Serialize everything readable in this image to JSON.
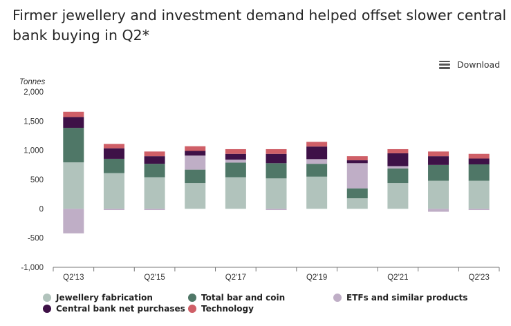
{
  "title": "Firmer jewellery and investment demand helped offset slower central bank buying in Q2*",
  "toolbar": {
    "download_label": "Download",
    "download_icon": "hamburger-menu-icon"
  },
  "chart_data": {
    "type": "bar",
    "stacked": true,
    "ylabel": "Tonnes",
    "ylim": [
      -1000,
      2000
    ],
    "yticks": [
      -1000,
      -500,
      0,
      500,
      1000,
      1500,
      2000
    ],
    "ytick_labels": [
      "-1,000",
      "-500",
      "0",
      "500",
      "1,000",
      "1,500",
      "2,000"
    ],
    "categories": [
      "Q2'13",
      "Q2'14",
      "Q2'15",
      "Q2'16",
      "Q2'17",
      "Q2'18",
      "Q2'19",
      "Q2'20",
      "Q2'21",
      "Q2'22",
      "Q2'23"
    ],
    "xtick_labels": [
      "Q2'13",
      "",
      "Q2'15",
      "",
      "Q2'17",
      "",
      "Q2'19",
      "",
      "Q2'21",
      "",
      "Q2'23"
    ],
    "grid": false,
    "legend_position": "bottom",
    "series": [
      {
        "name": "Jewellery fabrication",
        "color": "#b1c3bc",
        "values": [
          795,
          610,
          540,
          440,
          540,
          520,
          550,
          180,
          440,
          480,
          480
        ]
      },
      {
        "name": "Total bar and coin",
        "color": "#4f7767",
        "values": [
          590,
          245,
          230,
          230,
          250,
          260,
          220,
          170,
          250,
          270,
          280
        ]
      },
      {
        "name": "ETFs and similar products",
        "color": "#bfaec6",
        "values": [
          -420,
          -20,
          -20,
          240,
          50,
          -20,
          80,
          430,
          40,
          -50,
          -20
        ]
      },
      {
        "name": "Central bank net purchases",
        "color": "#3e1147",
        "values": [
          185,
          180,
          130,
          80,
          100,
          160,
          215,
          50,
          220,
          150,
          100
        ]
      },
      {
        "name": "Technology",
        "color": "#cf5f67",
        "values": [
          90,
          75,
          80,
          80,
          80,
          80,
          80,
          70,
          70,
          80,
          80
        ]
      }
    ]
  },
  "legend": {
    "items": [
      {
        "label": "Jewellery fabrication",
        "color": "#b1c3bc"
      },
      {
        "label": "Total bar and coin",
        "color": "#4f7767"
      },
      {
        "label": "ETFs and similar products",
        "color": "#bfaec6"
      },
      {
        "label": "Central bank net purchases",
        "color": "#3e1147"
      },
      {
        "label": "Technology",
        "color": "#cf5f67"
      }
    ]
  }
}
